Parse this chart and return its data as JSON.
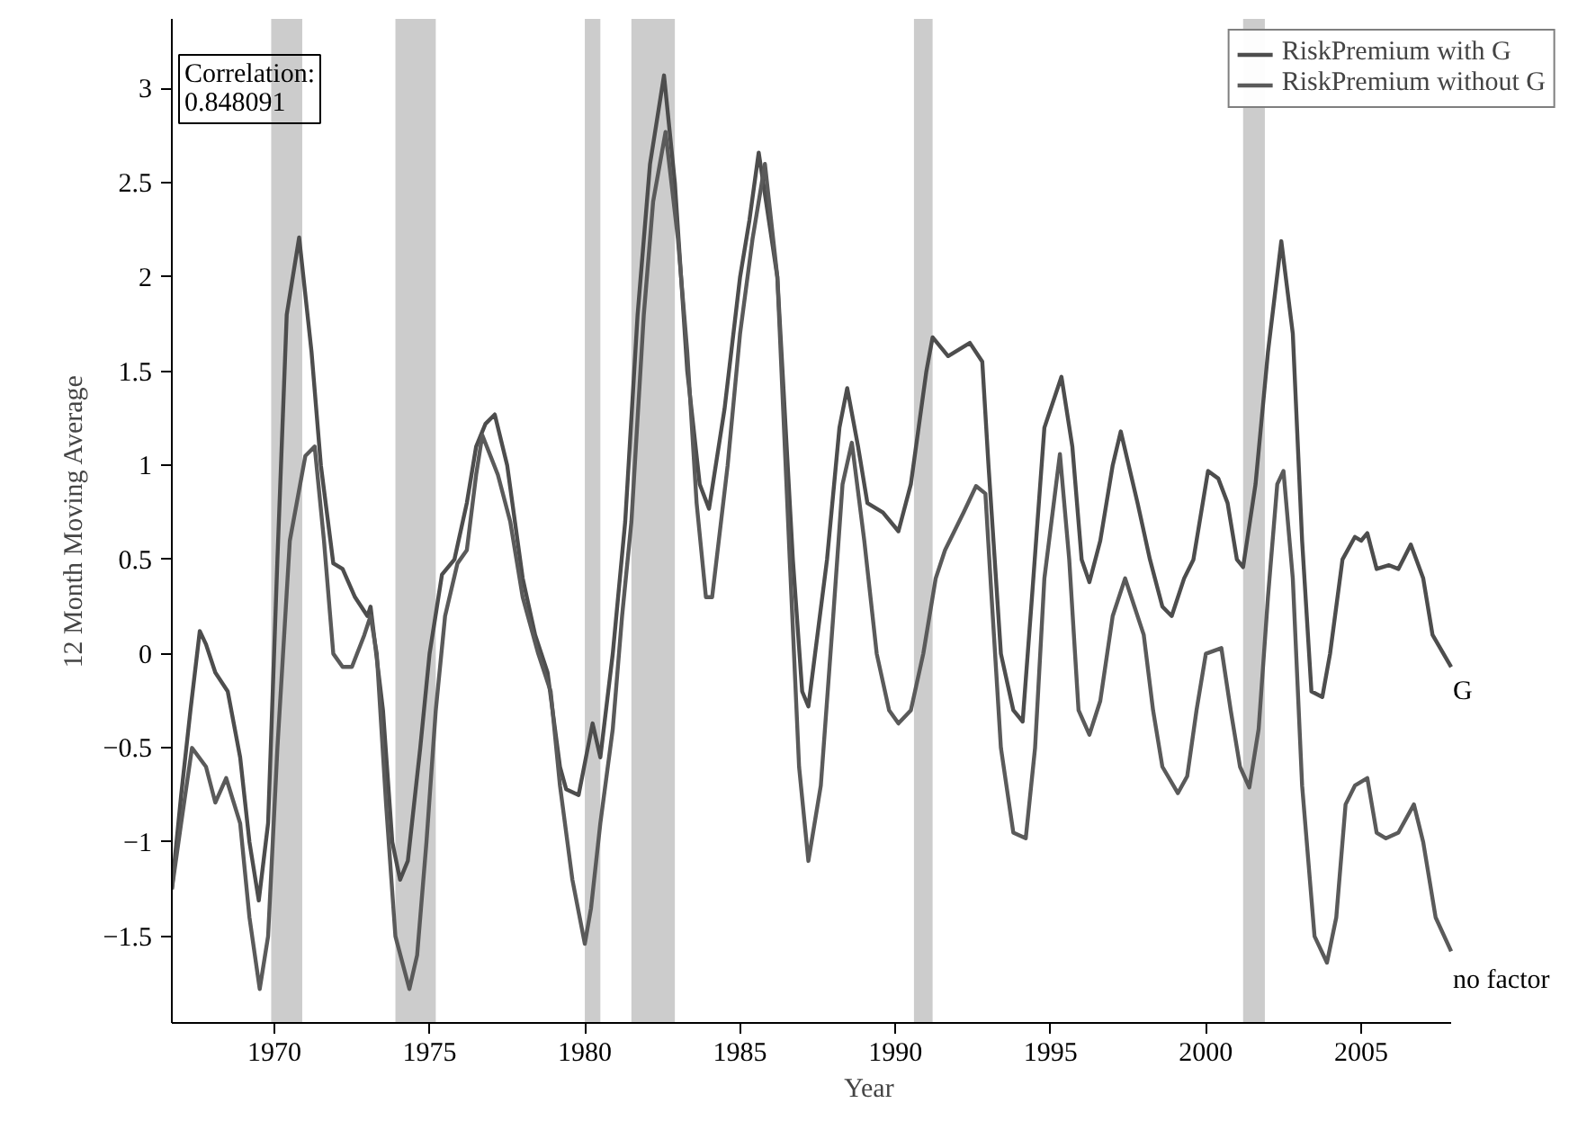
{
  "chart_data": {
    "type": "line",
    "xlabel": "Year",
    "ylabel": "12 Month Moving Average",
    "xlim": [
      1966.7,
      2007.9
    ],
    "ylim": [
      -1.96,
      3.37
    ],
    "xticks": [
      1970,
      1975,
      1980,
      1985,
      1990,
      1995,
      2000,
      2005
    ],
    "yticks": [
      {
        "value": -1.5,
        "label": "−1.5"
      },
      {
        "value": -1,
        "label": "−1"
      },
      {
        "value": -0.5,
        "label": "−0.5"
      },
      0,
      0.5,
      1,
      1.5,
      2,
      2.5,
      3
    ],
    "grid": false,
    "legend": "top right",
    "line_style": "solid",
    "marker": "none",
    "bands": [
      {
        "axis": "x",
        "from": 1969.9,
        "to": 1970.9,
        "color": "#cccccc"
      },
      {
        "axis": "x",
        "from": 1973.9,
        "to": 1975.2,
        "color": "#cccccc"
      },
      {
        "axis": "x",
        "from": 1980.0,
        "to": 1980.5,
        "color": "#cccccc"
      },
      {
        "axis": "x",
        "from": 1981.5,
        "to": 1982.9,
        "color": "#cccccc"
      },
      {
        "axis": "x",
        "from": 1990.6,
        "to": 1991.2,
        "color": "#cccccc"
      },
      {
        "axis": "x",
        "from": 2001.2,
        "to": 2001.9,
        "color": "#cccccc"
      }
    ],
    "annotations": [
      "Correlation:\n0.848091",
      {
        "text": "G",
        "x": 2007.9,
        "y": -0.07
      },
      {
        "text": "no factor",
        "x": 2007.9,
        "y": -1.6
      }
    ],
    "series": [
      {
        "name": "RiskPremium with G",
        "color": "#4d4d4d",
        "x": [
          1966.7,
          1967.0,
          1967.3,
          1967.6,
          1967.8,
          1968.1,
          1968.5,
          1968.9,
          1969.2,
          1969.5,
          1969.8,
          1970.1,
          1970.4,
          1970.8,
          1971.2,
          1971.5,
          1971.9,
          1972.2,
          1972.6,
          1973.0,
          1973.1,
          1973.5,
          1973.8,
          1974.05,
          1974.3,
          1974.7,
          1975.0,
          1975.4,
          1975.8,
          1976.2,
          1976.5,
          1976.8,
          1977.1,
          1977.5,
          1978.0,
          1978.4,
          1978.8,
          1979.2,
          1979.4,
          1979.8,
          1980.25,
          1980.5,
          1980.9,
          1981.3,
          1981.7,
          1982.1,
          1982.55,
          1982.9,
          1983.3,
          1983.7,
          1984.0,
          1984.5,
          1985.0,
          1985.3,
          1985.6,
          1986.2,
          1986.7,
          1987.0,
          1987.2,
          1987.8,
          1988.2,
          1988.45,
          1988.8,
          1989.1,
          1989.6,
          1990.1,
          1990.5,
          1991.0,
          1991.2,
          1991.7,
          1992.4,
          1992.8,
          1993.0,
          1993.4,
          1993.8,
          1994.1,
          1994.4,
          1994.8,
          1995.35,
          1995.7,
          1996.0,
          1996.25,
          1996.6,
          1997.0,
          1997.26,
          1997.8,
          1998.2,
          1998.6,
          1998.9,
          1999.3,
          1999.6,
          2000.07,
          2000.4,
          2000.7,
          2001.0,
          2001.2,
          2001.6,
          2002.0,
          2002.43,
          2002.8,
          2003.1,
          2003.4,
          2003.75,
          2004.0,
          2004.4,
          2004.8,
          2005.0,
          2005.2,
          2005.5,
          2005.9,
          2006.2,
          2006.6,
          2007.0,
          2007.3,
          2007.9
        ],
        "values": [
          -1.25,
          -0.75,
          -0.3,
          0.12,
          0.05,
          -0.1,
          -0.2,
          -0.55,
          -1.0,
          -1.31,
          -0.9,
          0.5,
          1.8,
          2.21,
          1.6,
          1.0,
          0.48,
          0.45,
          0.3,
          0.2,
          0.25,
          -0.3,
          -1.0,
          -1.2,
          -1.1,
          -0.5,
          0.0,
          0.42,
          0.5,
          0.8,
          1.1,
          1.22,
          1.27,
          1.0,
          0.4,
          0.1,
          -0.1,
          -0.6,
          -0.72,
          -0.75,
          -0.37,
          -0.55,
          0.0,
          0.7,
          1.8,
          2.6,
          3.07,
          2.5,
          1.5,
          0.9,
          0.77,
          1.3,
          2.0,
          2.3,
          2.66,
          2.0,
          0.5,
          -0.2,
          -0.28,
          0.5,
          1.2,
          1.41,
          1.1,
          0.8,
          0.75,
          0.65,
          0.9,
          1.5,
          1.68,
          1.58,
          1.65,
          1.55,
          1.0,
          0.0,
          -0.3,
          -0.36,
          0.3,
          1.2,
          1.47,
          1.1,
          0.5,
          0.38,
          0.6,
          1.0,
          1.18,
          0.8,
          0.5,
          0.25,
          0.2,
          0.4,
          0.5,
          0.97,
          0.93,
          0.8,
          0.5,
          0.46,
          0.9,
          1.6,
          2.19,
          1.7,
          0.6,
          -0.2,
          -0.23,
          0.0,
          0.5,
          0.62,
          0.6,
          0.64,
          0.45,
          0.47,
          0.45,
          0.58,
          0.4,
          0.1,
          -0.07
        ]
      },
      {
        "name": "RiskPremium without G",
        "color": "#5a5a5a",
        "x": [
          1966.7,
          1967.0,
          1967.35,
          1967.8,
          1968.1,
          1968.45,
          1968.9,
          1969.2,
          1969.53,
          1969.8,
          1970.1,
          1970.5,
          1971.0,
          1971.3,
          1971.6,
          1971.9,
          1972.2,
          1972.5,
          1972.9,
          1973.1,
          1973.3,
          1973.6,
          1973.9,
          1974.35,
          1974.6,
          1974.9,
          1975.2,
          1975.5,
          1975.9,
          1976.2,
          1976.5,
          1976.7,
          1977.2,
          1977.6,
          1978.0,
          1978.5,
          1978.9,
          1979.2,
          1979.6,
          1980.0,
          1980.2,
          1980.5,
          1980.9,
          1981.2,
          1981.5,
          1981.9,
          1982.2,
          1982.6,
          1983.0,
          1983.3,
          1983.6,
          1983.9,
          1984.1,
          1984.6,
          1985.0,
          1985.4,
          1985.8,
          1986.2,
          1986.6,
          1986.9,
          1987.2,
          1987.6,
          1988.0,
          1988.3,
          1988.6,
          1989.0,
          1989.4,
          1989.8,
          1990.1,
          1990.5,
          1990.9,
          1991.3,
          1991.6,
          1992.2,
          1992.6,
          1992.9,
          1993.1,
          1993.4,
          1993.8,
          1994.2,
          1994.5,
          1994.8,
          1995.3,
          1995.6,
          1995.9,
          1996.25,
          1996.6,
          1997.0,
          1997.4,
          1997.7,
          1998.0,
          1998.3,
          1998.6,
          1999.1,
          1999.4,
          1999.7,
          2000.0,
          2000.5,
          2000.8,
          2001.1,
          2001.4,
          2001.7,
          2002.0,
          2002.3,
          2002.5,
          2002.8,
          2003.1,
          2003.5,
          2003.9,
          2004.2,
          2004.5,
          2004.8,
          2005.2,
          2005.5,
          2005.8,
          2006.2,
          2006.7,
          2007.0,
          2007.4,
          2007.9
        ],
        "values": [
          -1.25,
          -0.9,
          -0.5,
          -0.6,
          -0.79,
          -0.66,
          -0.9,
          -1.4,
          -1.78,
          -1.5,
          -0.5,
          0.6,
          1.05,
          1.1,
          0.6,
          0.0,
          -0.07,
          -0.07,
          0.1,
          0.2,
          0.0,
          -0.8,
          -1.5,
          -1.78,
          -1.6,
          -1.0,
          -0.3,
          0.2,
          0.48,
          0.55,
          0.95,
          1.16,
          0.95,
          0.7,
          0.3,
          0.0,
          -0.2,
          -0.7,
          -1.2,
          -1.54,
          -1.35,
          -0.9,
          -0.4,
          0.2,
          0.7,
          1.8,
          2.4,
          2.77,
          2.2,
          1.6,
          0.8,
          0.3,
          0.3,
          1.0,
          1.7,
          2.2,
          2.6,
          2.0,
          0.5,
          -0.6,
          -1.1,
          -0.7,
          0.2,
          0.9,
          1.12,
          0.6,
          0.0,
          -0.3,
          -0.37,
          -0.3,
          0.0,
          0.4,
          0.55,
          0.75,
          0.89,
          0.85,
          0.3,
          -0.5,
          -0.95,
          -0.98,
          -0.5,
          0.4,
          1.06,
          0.5,
          -0.3,
          -0.43,
          -0.25,
          0.2,
          0.4,
          0.25,
          0.1,
          -0.3,
          -0.6,
          -0.74,
          -0.65,
          -0.3,
          0.0,
          0.03,
          -0.3,
          -0.6,
          -0.71,
          -0.4,
          0.3,
          0.9,
          0.97,
          0.4,
          -0.7,
          -1.5,
          -1.64,
          -1.4,
          -0.8,
          -0.7,
          -0.66,
          -0.95,
          -0.98,
          -0.95,
          -0.8,
          -1.0,
          -1.4,
          -1.58
        ]
      }
    ]
  }
}
